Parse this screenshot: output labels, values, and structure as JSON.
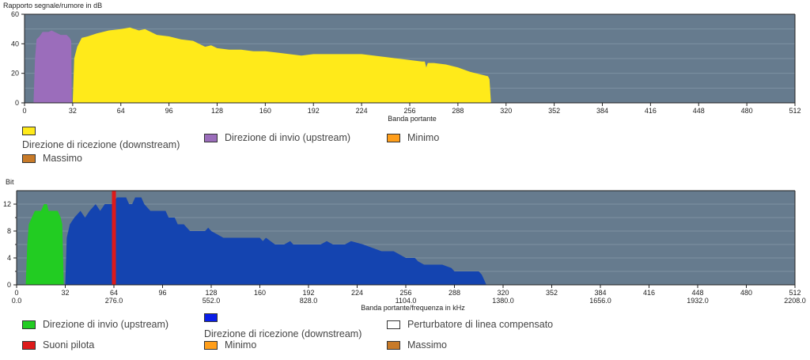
{
  "chart_data": [
    {
      "type": "area",
      "title": "Rapporto segnale/rumore in dB",
      "xlabel": "Banda portante",
      "ylabel": "Rapporto segnale/rumore in dB",
      "xlim": [
        0,
        512
      ],
      "ylim": [
        0,
        60
      ],
      "xticks": [
        0,
        32,
        64,
        96,
        128,
        160,
        192,
        224,
        256,
        288,
        320,
        352,
        384,
        416,
        448,
        480,
        512
      ],
      "yticks": [
        0,
        20,
        40,
        60
      ],
      "grid": true,
      "series": [
        {
          "name": "Direzione di invio  (upstream)",
          "color": "#9b6dbb",
          "points": [
            [
              6,
              0
            ],
            [
              7,
              30
            ],
            [
              8,
              43
            ],
            [
              10,
              45
            ],
            [
              12,
              48
            ],
            [
              16,
              48
            ],
            [
              18,
              49
            ],
            [
              20,
              48
            ],
            [
              22,
              47
            ],
            [
              24,
              46
            ],
            [
              28,
              46
            ],
            [
              30,
              44
            ],
            [
              31,
              42
            ],
            [
              31.5,
              0
            ]
          ]
        },
        {
          "name": "Direzione di ricezione  (downstream)",
          "color": "#ffea1a",
          "points": [
            [
              32,
              0
            ],
            [
              33,
              30
            ],
            [
              35,
              38
            ],
            [
              38,
              44
            ],
            [
              42,
              45
            ],
            [
              48,
              47
            ],
            [
              56,
              49
            ],
            [
              64,
              50
            ],
            [
              70,
              51
            ],
            [
              76,
              49
            ],
            [
              80,
              50
            ],
            [
              88,
              46
            ],
            [
              96,
              45
            ],
            [
              104,
              43
            ],
            [
              112,
              42
            ],
            [
              120,
              38
            ],
            [
              124,
              39
            ],
            [
              128,
              37
            ],
            [
              136,
              36
            ],
            [
              144,
              36
            ],
            [
              152,
              35
            ],
            [
              160,
              35
            ],
            [
              168,
              34
            ],
            [
              176,
              33
            ],
            [
              184,
              32
            ],
            [
              192,
              33
            ],
            [
              200,
              33
            ],
            [
              208,
              33
            ],
            [
              216,
              33
            ],
            [
              224,
              33
            ],
            [
              232,
              32
            ],
            [
              240,
              31
            ],
            [
              248,
              30
            ],
            [
              256,
              29
            ],
            [
              264,
              28
            ],
            [
              266,
              28
            ],
            [
              267,
              24
            ],
            [
              268,
              27
            ],
            [
              272,
              27
            ],
            [
              280,
              26
            ],
            [
              288,
              24
            ],
            [
              296,
              21
            ],
            [
              304,
              19
            ],
            [
              308,
              18
            ],
            [
              309,
              16
            ],
            [
              310,
              0
            ]
          ]
        },
        {
          "name": "Minimo",
          "color": "#ff9e1a",
          "points": []
        },
        {
          "name": "Massimo",
          "color": "#c87a28",
          "points": []
        }
      ],
      "legend": "bottom"
    },
    {
      "type": "area",
      "title": "Bit",
      "xlabel": "Banda portante/frequenza in kHz",
      "ylabel": "Bit",
      "xlim": [
        0,
        512
      ],
      "ylim": [
        0,
        14
      ],
      "xticks": [
        0,
        32,
        64,
        96,
        128,
        160,
        192,
        224,
        256,
        288,
        320,
        352,
        384,
        416,
        448,
        480,
        512
      ],
      "xticks_khz": {
        "0": "0.0",
        "64": "276.0",
        "128": "552.0",
        "192": "828.0",
        "256": "1104.0",
        "320": "1380.0",
        "384": "1656.0",
        "448": "1932.0",
        "512": "2208.0"
      },
      "yticks": [
        0,
        4,
        8,
        12
      ],
      "grid": true,
      "series": [
        {
          "name": "Direzione di invio  (upstream)",
          "color": "#22cc22",
          "points": [
            [
              6,
              0
            ],
            [
              7,
              6
            ],
            [
              8,
              9
            ],
            [
              10,
              10
            ],
            [
              12,
              11
            ],
            [
              16,
              11
            ],
            [
              18,
              12
            ],
            [
              20,
              12
            ],
            [
              21,
              11
            ],
            [
              27,
              11
            ],
            [
              29,
              10
            ],
            [
              30,
              9
            ],
            [
              31,
              0
            ]
          ]
        },
        {
          "name": "Direzione di ricezione  (downstream)",
          "color": "#1444b0",
          "points": [
            [
              32,
              0
            ],
            [
              33,
              7
            ],
            [
              35,
              9
            ],
            [
              38,
              10
            ],
            [
              42,
              11
            ],
            [
              45,
              10
            ],
            [
              48,
              11
            ],
            [
              52,
              12
            ],
            [
              55,
              11
            ],
            [
              58,
              12
            ],
            [
              62,
              12
            ],
            [
              63,
              12
            ],
            [
              66,
              13
            ],
            [
              72,
              13
            ],
            [
              74,
              12
            ],
            [
              76,
              12
            ],
            [
              78,
              13
            ],
            [
              82,
              13
            ],
            [
              84,
              12
            ],
            [
              88,
              11
            ],
            [
              92,
              11
            ],
            [
              98,
              11
            ],
            [
              100,
              10
            ],
            [
              104,
              10
            ],
            [
              106,
              9
            ],
            [
              110,
              9
            ],
            [
              114,
              8
            ],
            [
              120,
              8
            ],
            [
              124,
              8
            ],
            [
              126,
              8.5
            ],
            [
              128,
              8
            ],
            [
              136,
              7
            ],
            [
              150,
              7
            ],
            [
              160,
              7
            ],
            [
              162,
              6.5
            ],
            [
              164,
              7
            ],
            [
              170,
              6
            ],
            [
              176,
              6
            ],
            [
              180,
              6.5
            ],
            [
              182,
              6
            ],
            [
              192,
              6
            ],
            [
              200,
              6
            ],
            [
              204,
              6.5
            ],
            [
              208,
              6
            ],
            [
              216,
              6
            ],
            [
              220,
              6.5
            ],
            [
              228,
              6
            ],
            [
              240,
              5
            ],
            [
              248,
              5
            ],
            [
              256,
              4
            ],
            [
              262,
              4
            ],
            [
              264,
              3.5
            ],
            [
              268,
              3
            ],
            [
              276,
              3
            ],
            [
              280,
              3
            ],
            [
              286,
              2.5
            ],
            [
              288,
              2
            ],
            [
              300,
              2
            ],
            [
              304,
              2
            ],
            [
              306,
              1.5
            ],
            [
              309,
              0
            ]
          ]
        },
        {
          "name": "Perturbatore di linea compensato",
          "color": "#ffffff",
          "points": []
        },
        {
          "name": "Suoni pilota",
          "color": "#dd1a1a",
          "points": [
            [
              64,
              14
            ]
          ]
        },
        {
          "name": "Minimo",
          "color": "#ff9e1a",
          "points": []
        },
        {
          "name": "Massimo",
          "color": "#c87a28",
          "points": []
        }
      ],
      "legend": "bottom"
    }
  ]
}
